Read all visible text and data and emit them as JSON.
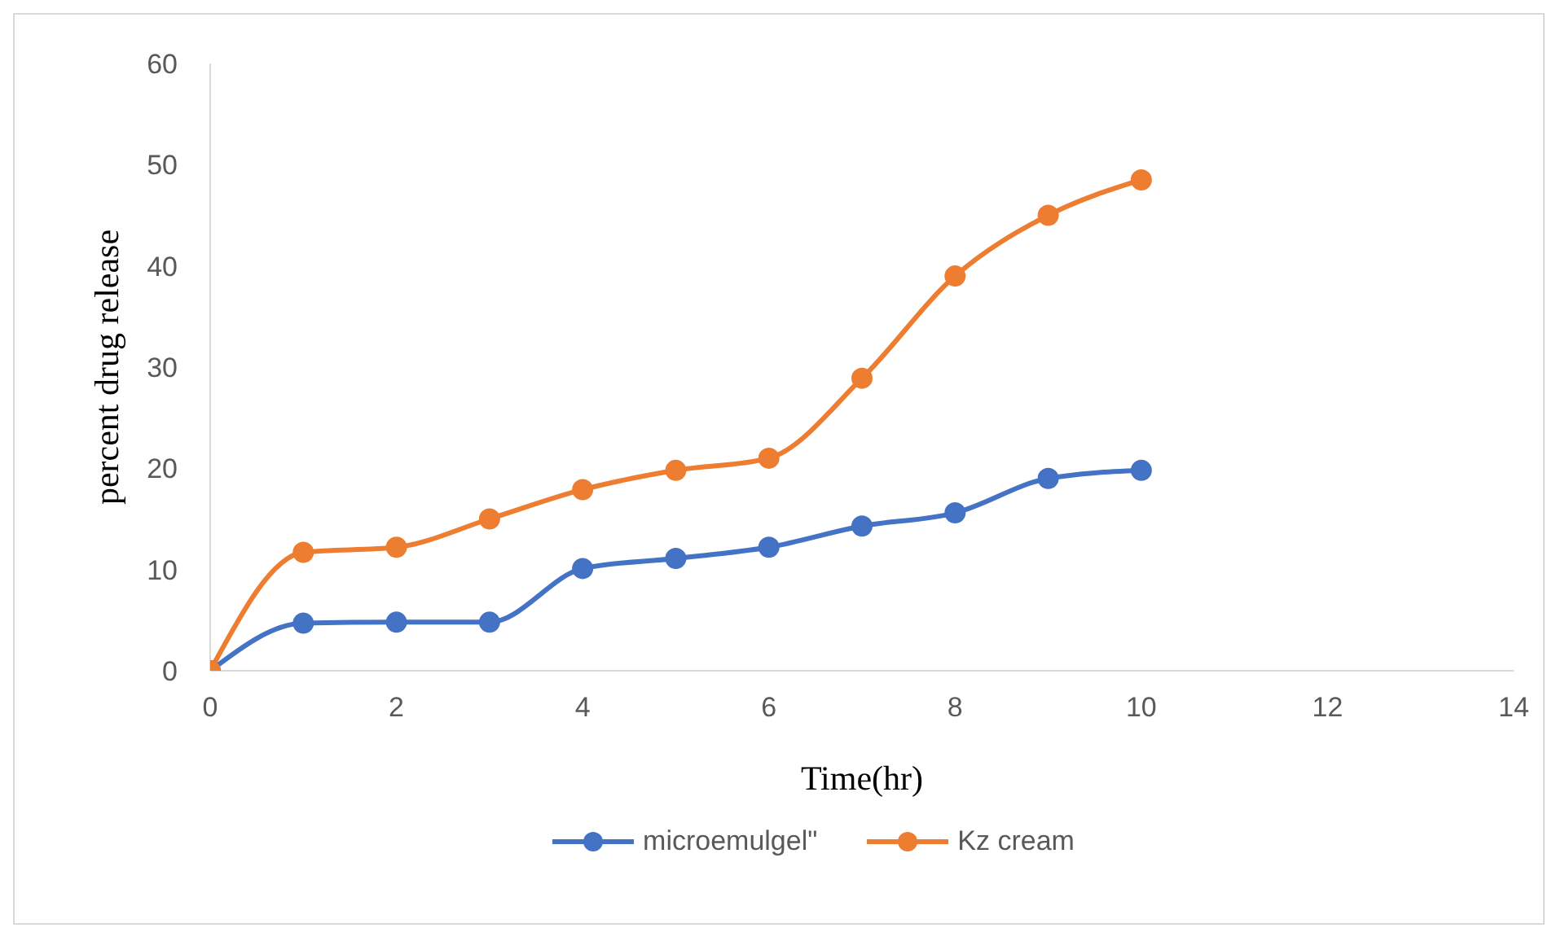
{
  "chart_data": {
    "type": "line",
    "xlabel": "Time(hr)",
    "ylabel": "percent drug release",
    "x": [
      0,
      1,
      2,
      3,
      4,
      5,
      6,
      7,
      8,
      9,
      10
    ],
    "series": [
      {
        "name": "microemulgel\"",
        "color": "#4472c4",
        "values": [
          0,
          4.7,
          4.8,
          4.8,
          10.1,
          11.1,
          12.2,
          14.3,
          15.6,
          19.0,
          19.8
        ]
      },
      {
        "name": "Kz cream",
        "color": "#ed7d31",
        "values": [
          0,
          11.7,
          12.2,
          15.0,
          17.9,
          19.8,
          21.0,
          28.9,
          39.0,
          45.0,
          48.5
        ]
      }
    ],
    "xlim": [
      0,
      14
    ],
    "xticks": [
      0,
      2,
      4,
      6,
      8,
      10,
      12,
      14
    ],
    "ylim": [
      0,
      60
    ],
    "yticks": [
      0,
      10,
      20,
      30,
      40,
      50,
      60
    ],
    "grid": false,
    "legend": "bottom",
    "marker": "circle",
    "line_style": "solid"
  }
}
